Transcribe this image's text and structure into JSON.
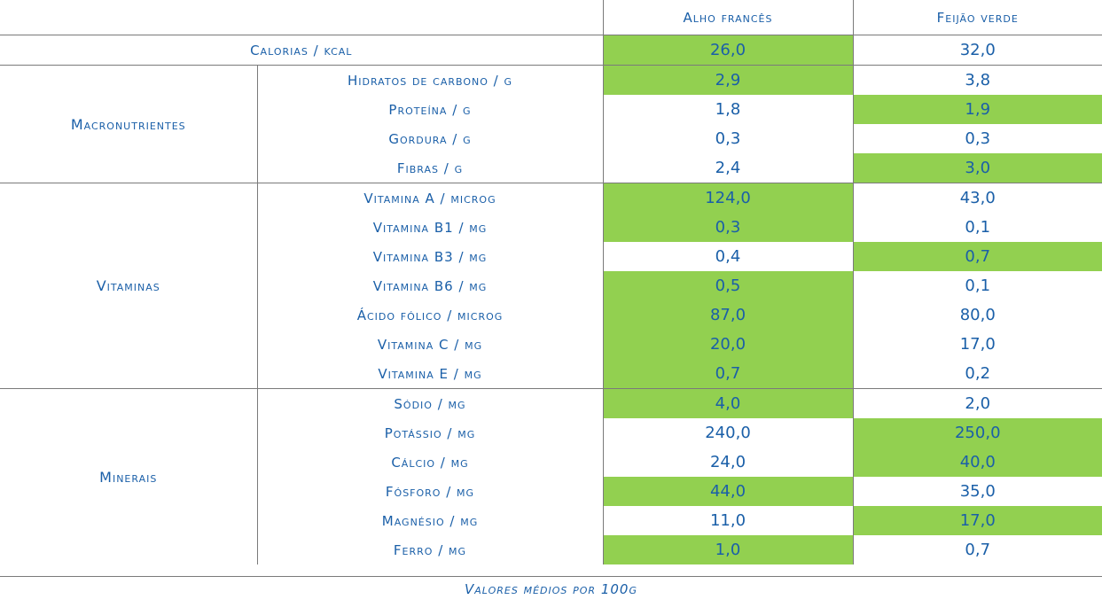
{
  "header": {
    "col1": "Alho francês",
    "col2": "Feijão verde"
  },
  "calorias": {
    "label": "Calorias / kcal",
    "v1": "26,0",
    "v2": "32,0",
    "hl1": true,
    "hl2": false
  },
  "groups": {
    "macro": "Macronutrientes",
    "vit": "Vitaminas",
    "min": "Minerais"
  },
  "rows": [
    {
      "label": "Hidratos de carbono / g",
      "v1": "2,9",
      "v2": "3,8",
      "hl1": true,
      "hl2": false
    },
    {
      "label": "Proteína / g",
      "v1": "1,8",
      "v2": "1,9",
      "hl1": false,
      "hl2": true
    },
    {
      "label": "Gordura / g",
      "v1": "0,3",
      "v2": "0,3",
      "hl1": false,
      "hl2": false
    },
    {
      "label": "Fibras / g",
      "v1": "2,4",
      "v2": "3,0",
      "hl1": false,
      "hl2": true
    },
    {
      "label": "Vitamina A / microg",
      "v1": "124,0",
      "v2": "43,0",
      "hl1": true,
      "hl2": false
    },
    {
      "label": "Vitamina B1 / mg",
      "v1": "0,3",
      "v2": "0,1",
      "hl1": true,
      "hl2": false
    },
    {
      "label": "Vitamina B3 / mg",
      "v1": "0,4",
      "v2": "0,7",
      "hl1": false,
      "hl2": true
    },
    {
      "label": "Vitamina B6 / mg",
      "v1": "0,5",
      "v2": "0,1",
      "hl1": true,
      "hl2": false
    },
    {
      "label": "Ácido fólico / microg",
      "v1": "87,0",
      "v2": "80,0",
      "hl1": true,
      "hl2": false
    },
    {
      "label": "Vitamina C / mg",
      "v1": "20,0",
      "v2": "17,0",
      "hl1": true,
      "hl2": false
    },
    {
      "label": "Vitamina E / mg",
      "v1": "0,7",
      "v2": "0,2",
      "hl1": true,
      "hl2": false
    },
    {
      "label": "Sódio / mg",
      "v1": "4,0",
      "v2": "2,0",
      "hl1": true,
      "hl2": false
    },
    {
      "label": "Potássio / mg",
      "v1": "240,0",
      "v2": "250,0",
      "hl1": false,
      "hl2": true
    },
    {
      "label": "Cálcio / mg",
      "v1": "24,0",
      "v2": "40,0",
      "hl1": false,
      "hl2": true
    },
    {
      "label": "Fósforo / mg",
      "v1": "44,0",
      "v2": "35,0",
      "hl1": true,
      "hl2": false
    },
    {
      "label": "Magnésio / mg",
      "v1": "11,0",
      "v2": "17,0",
      "hl1": false,
      "hl2": true
    },
    {
      "label": "Ferro / mg",
      "v1": "1,0",
      "v2": "0,7",
      "hl1": true,
      "hl2": false
    }
  ],
  "footnote": "Valores médios por 100g",
  "colors": {
    "text": "#1a5fa8",
    "highlight": "#92d050",
    "rule": "#7a7a7a"
  }
}
